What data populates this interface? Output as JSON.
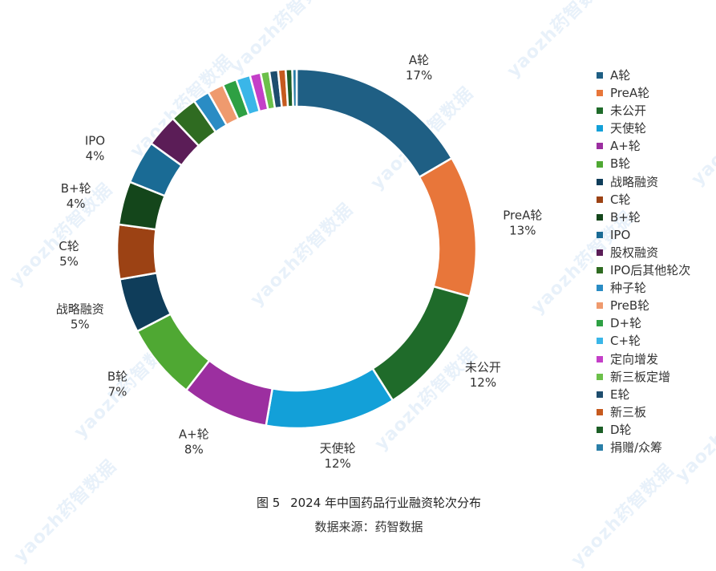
{
  "chart_data": {
    "type": "pie",
    "style": "donut",
    "title": "2024 年中国药品行业融资轮次分布",
    "figure_label": "图 5",
    "source": "数据来源：药智数据",
    "legend_position": "right",
    "slices": [
      {
        "name": "A轮",
        "value": 17,
        "label": "17%",
        "color": "#1f5f84"
      },
      {
        "name": "PreA轮",
        "value": 13,
        "label": "13%",
        "color": "#e8763a"
      },
      {
        "name": "未公开",
        "value": 12,
        "label": "12%",
        "color": "#1f6b2a"
      },
      {
        "name": "天使轮",
        "value": 12,
        "label": "12%",
        "color": "#13a0d8"
      },
      {
        "name": "A+轮",
        "value": 8,
        "label": "8%",
        "color": "#9c2fa0"
      },
      {
        "name": "B轮",
        "value": 7,
        "label": "7%",
        "color": "#4fa833"
      },
      {
        "name": "战略融资",
        "value": 5,
        "label": "5%",
        "color": "#0f3d5a"
      },
      {
        "name": "C轮",
        "value": 5,
        "label": "5%",
        "color": "#9c4214"
      },
      {
        "name": "B+轮",
        "value": 4,
        "label": "4%",
        "color": "#14461b"
      },
      {
        "name": "IPO",
        "value": 4,
        "label": "4%",
        "color": "#1a6b95"
      },
      {
        "name": "股权融资",
        "value": 3,
        "label": "",
        "color": "#5b1d57"
      },
      {
        "name": "IPO后其他轮次",
        "value": 2.5,
        "label": "",
        "color": "#2f6b21"
      },
      {
        "name": "种子轮",
        "value": 1.5,
        "label": "",
        "color": "#2a8cc4"
      },
      {
        "name": "PreB轮",
        "value": 1.5,
        "label": "",
        "color": "#ef9a6e"
      },
      {
        "name": "D+轮",
        "value": 1.3,
        "label": "",
        "color": "#2ea043"
      },
      {
        "name": "C+轮",
        "value": 1.3,
        "label": "",
        "color": "#3ab6e8"
      },
      {
        "name": "定向增发",
        "value": 1,
        "label": "",
        "color": "#c43fc8"
      },
      {
        "name": "新三板定增",
        "value": 0.8,
        "label": "",
        "color": "#6cc04a"
      },
      {
        "name": "E轮",
        "value": 0.8,
        "label": "",
        "color": "#1e4d6e"
      },
      {
        "name": "新三板",
        "value": 0.7,
        "label": "",
        "color": "#c65a1e"
      },
      {
        "name": "D轮",
        "value": 0.6,
        "label": "",
        "color": "#1c5e26"
      },
      {
        "name": "捐赠/众筹",
        "value": 0.4,
        "label": "",
        "color": "#2a7fa8"
      }
    ]
  },
  "watermark_text": "yaozh药智数据"
}
